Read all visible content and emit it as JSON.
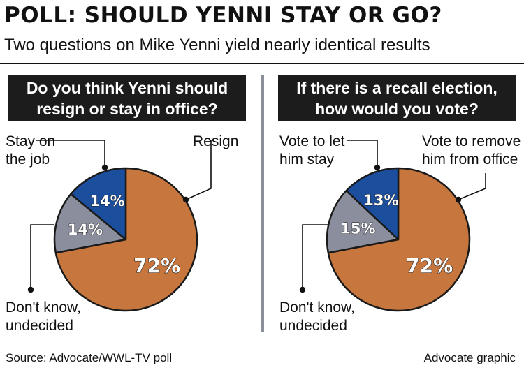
{
  "title": "POLL: SHOULD YENNI STAY OR GO?",
  "subtitle": "Two questions on Mike Yenni yield nearly identical results",
  "source": "Source: Advocate/WWL-TV poll",
  "credit": "Advocate graphic",
  "colors": {
    "orange": "#c7763e",
    "blue": "#1b4f9e",
    "gray": "#8a8e9d",
    "dark": "#1c1c1c"
  },
  "chart_data": [
    {
      "type": "pie",
      "title_lines": [
        "Do you think Yenni should",
        "resign or stay in office?"
      ],
      "slices": [
        {
          "label_lines": [
            "Stay on",
            "the job"
          ],
          "value": 14,
          "display": "14%",
          "color": "#1b4f9e"
        },
        {
          "label_lines": [
            "Don't know,",
            "undecided"
          ],
          "value": 14,
          "display": "14%",
          "color": "#8a8e9d"
        },
        {
          "label_lines": [
            "Resign"
          ],
          "value": 72,
          "display": "72%",
          "color": "#c7763e"
        }
      ]
    },
    {
      "type": "pie",
      "title_lines": [
        "If there is a recall election,",
        "how would you vote?"
      ],
      "slices": [
        {
          "label_lines": [
            "Vote to let",
            "him stay"
          ],
          "value": 13,
          "display": "13%",
          "color": "#1b4f9e"
        },
        {
          "label_lines": [
            "Don't know,",
            "undecided"
          ],
          "value": 15,
          "display": "15%",
          "color": "#8a8e9d"
        },
        {
          "label_lines": [
            "Vote to remove",
            "him from office"
          ],
          "value": 72,
          "display": "72%",
          "color": "#c7763e"
        }
      ]
    }
  ]
}
